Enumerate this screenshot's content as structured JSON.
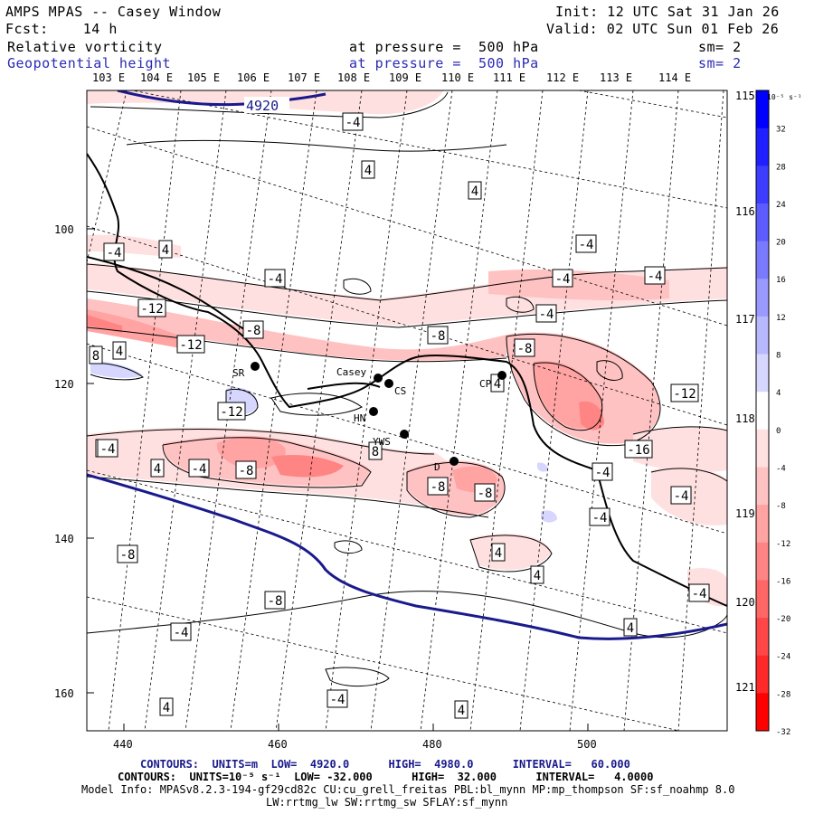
{
  "header": {
    "title": "AMPS MPAS -- Casey Window",
    "init": "Init: 12 UTC Sat 31 Jan 26",
    "fcst": "Fcst:    14 h",
    "valid": "Valid: 02 UTC Sun 01 Feb 26",
    "field1_name": "Relative vorticity",
    "field1_pressure": "at pressure =  500 hPa",
    "field1_sm": "sm= 2",
    "field2_name": "Geopotential height",
    "field2_pressure": "at pressure =  500 hPa",
    "field2_sm": "sm= 2"
  },
  "map": {
    "lon_top_labels": [
      "103 E",
      "104 E",
      "105 E",
      "106 E",
      "107 E",
      "108 E",
      "109 E",
      "110 E",
      "111 E",
      "112 E",
      "113 E",
      "114 E"
    ],
    "lat_right_labels": [
      "115 E",
      "116 E",
      "117 E",
      "118 E",
      "119 E",
      "120 E",
      "121 E"
    ],
    "y_axis_ticks": [
      "100",
      "120",
      "140",
      "160"
    ],
    "x_axis_ticks": [
      "440",
      "460",
      "480",
      "500"
    ],
    "height_contour_label": "4920",
    "stations": [
      "SR",
      "Casey",
      "CS",
      "HN",
      "YWS",
      "D",
      "CP"
    ],
    "vorticity_labels": [
      "-4",
      "4",
      "4",
      "-4",
      "4",
      "-4",
      "-4",
      "-4",
      "-4",
      "-12",
      "-4",
      "-8",
      "-12",
      "-8",
      "8",
      "4",
      "-8",
      "-12",
      "-12",
      "-8",
      "8",
      "4",
      "-4",
      "-8",
      "-16",
      "-4",
      "-4",
      "-8",
      "-4",
      "-4",
      "-8",
      "4",
      "4",
      "-8",
      "-4",
      "4",
      "-4",
      "-4",
      "4",
      "4",
      "4",
      "-4",
      "-8"
    ]
  },
  "colorbar": {
    "unit": "10⁻⁵ s⁻¹",
    "ticks": [
      "32",
      "28",
      "24",
      "20",
      "16",
      "12",
      "8",
      "4",
      "0",
      "-4",
      "-8",
      "-12",
      "-16",
      "-20",
      "-24",
      "-28",
      "-32"
    ],
    "colors": [
      "#0000ff",
      "#1f1fff",
      "#3d3dff",
      "#5c5cff",
      "#7a7aff",
      "#9999ff",
      "#b8b8ff",
      "#d6d6ff",
      "#ffffff",
      "#ffe0e0",
      "#ffc2c2",
      "#ffa3a3",
      "#ff8585",
      "#ff6666",
      "#ff4747",
      "#ff2929",
      "#ff0000"
    ]
  },
  "footer": {
    "line1": "CONTOURS:  UNITS=m  LOW=  4920.0      HIGH=  4980.0      INTERVAL=   60.000",
    "line2": "CONTOURS:  UNITS=10⁻⁵ s⁻¹  LOW= -32.000      HIGH=  32.000      INTERVAL=   4.0000",
    "line3": "Model Info: MPASv8.2.3-194-gf29cd82c CU:cu_grell_freitas PBL:bl_mynn MP:mp_thompson SF:sf_noahmp 8.0",
    "line4": "LW:rrtmg_lw SW:rrtmg_sw SFLAY:sf_mynn"
  }
}
